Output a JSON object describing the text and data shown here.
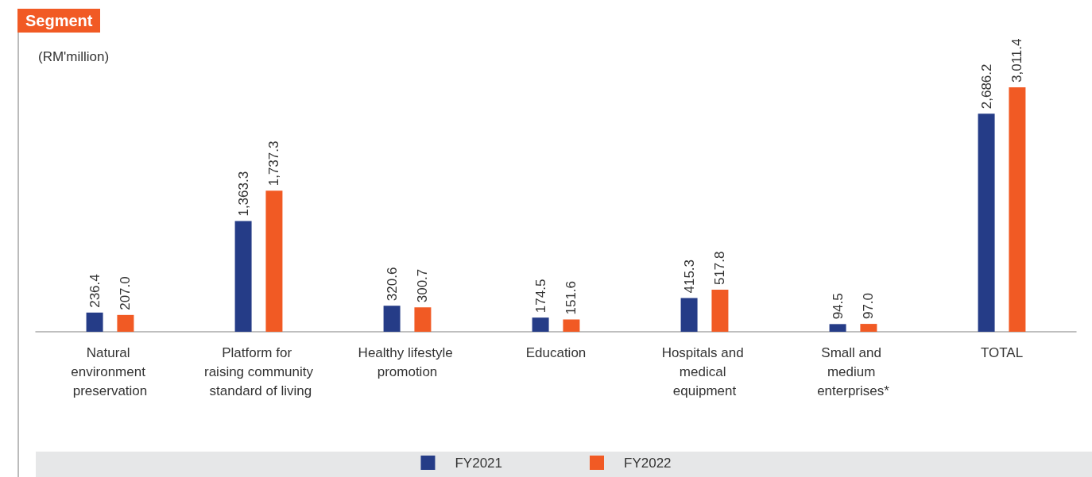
{
  "chart_data": {
    "type": "bar",
    "title": "Segment",
    "ylabel": "(RM'million)",
    "categories": [
      "Natural environment preservation",
      "Platform for raising community standard of living",
      "Healthy lifestyle promotion",
      "Education",
      "Hospitals and medical equipment",
      "Small and medium enterprises*",
      "TOTAL"
    ],
    "legend": "bottom",
    "series": [
      {
        "name": "FY2021",
        "color": "#253c87",
        "values": [
          236.4,
          1363.3,
          320.6,
          174.5,
          415.3,
          94.5,
          2686.2
        ],
        "value_labels": [
          "236.4",
          "1,363.3",
          "320.6",
          "174.5",
          "415.3",
          "94.5",
          "2,686.2"
        ]
      },
      {
        "name": "FY2022",
        "color": "#f15a24",
        "values": [
          207.0,
          1737.3,
          300.7,
          151.6,
          517.8,
          97.0,
          3011.4
        ],
        "value_labels": [
          "207.0",
          "1,737.3",
          "300.7",
          "151.6",
          "517.8",
          "97.0",
          "3,011.4"
        ]
      }
    ]
  }
}
